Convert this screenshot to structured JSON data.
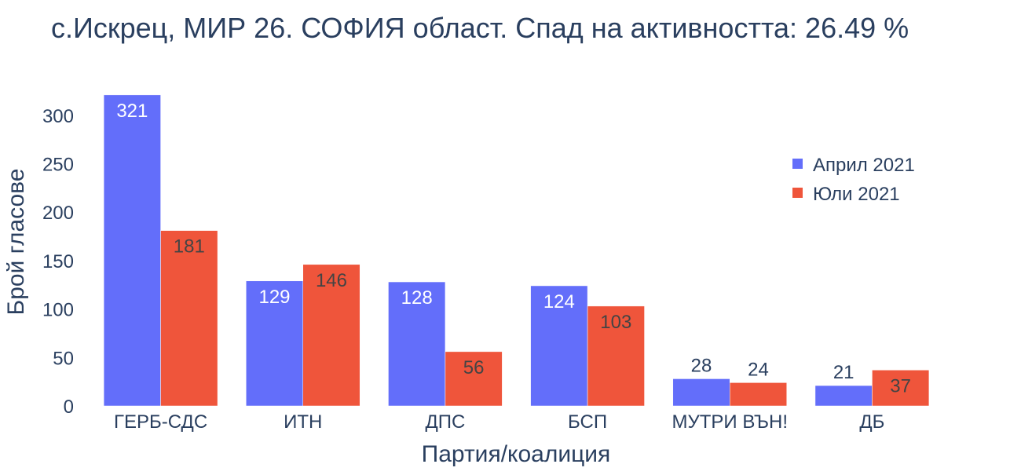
{
  "chart_data": {
    "type": "bar",
    "title": "с.Искрец, МИР 26. СОФИЯ област. Спад на активността: 26.49 %",
    "xlabel": "Партия/коалиция",
    "ylabel": "Брой гласове",
    "categories": [
      "ГЕРБ-СДС",
      "ИТН",
      "ДПС",
      "БСП",
      "МУТРИ ВЪН!",
      "ДБ"
    ],
    "series": [
      {
        "name": "Април 2021",
        "values": [
          321,
          129,
          128,
          124,
          28,
          21
        ],
        "color": "#636efa"
      },
      {
        "name": "Юли 2021",
        "values": [
          181,
          146,
          56,
          103,
          24,
          37
        ],
        "color": "#ef553b"
      }
    ],
    "yticks": [
      0,
      50,
      100,
      150,
      200,
      250,
      300
    ],
    "ylim": [
      0,
      337.9
    ],
    "grid": false,
    "legend_position": "top-right"
  }
}
